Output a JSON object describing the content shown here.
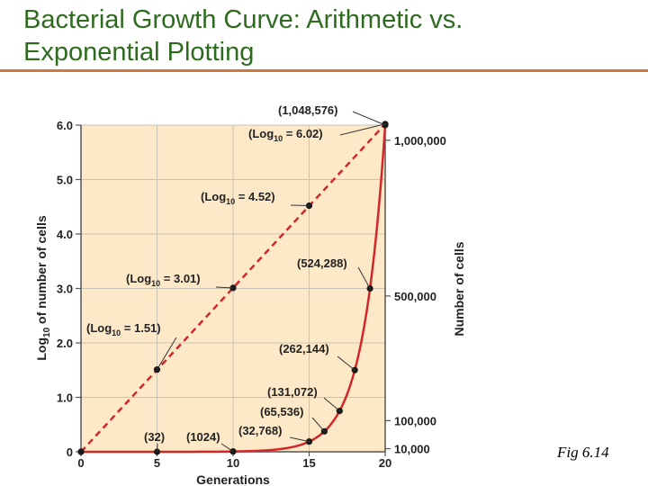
{
  "slide": {
    "title_line1": "Bacterial Growth Curve: Arithmetic vs.",
    "title_line2": "Exponential Plotting",
    "caption": "Fig 6.14"
  },
  "colors": {
    "title": "#2e6b1f",
    "rule": "#cf7a3c",
    "plot_background": "#fde9c8",
    "curve": "#d3262b",
    "point": "#1a1a1a"
  },
  "chart_data": {
    "type": "line",
    "xlabel": "Generations",
    "ylabel_left": {
      "prefix": "Log",
      "sub": "10",
      "suffix": " of number of cells"
    },
    "ylabel_right": "Number of cells",
    "xlim": [
      0,
      20
    ],
    "ylim_left": [
      0,
      6.0
    ],
    "ylim_right": [
      0,
      1048576
    ],
    "grid": true,
    "x_ticks": [
      0,
      5,
      10,
      15,
      20
    ],
    "x_tick_labels": [
      "0",
      "5",
      "10",
      "15",
      "20"
    ],
    "y_left_ticks": [
      0,
      1.0,
      2.0,
      3.0,
      4.0,
      5.0,
      6.0
    ],
    "y_left_tick_labels": [
      "0",
      "1.0",
      "2.0",
      "3.0",
      "4.0",
      "5.0",
      "6.0"
    ],
    "y_right_ticks": [
      10000,
      100000,
      500000,
      1000000
    ],
    "y_right_tick_labels": [
      "10,000",
      "100,000",
      "500,000",
      "1,000,000"
    ],
    "series": [
      {
        "style": "dashed",
        "axis": "left",
        "x": [
          0,
          5,
          10,
          15,
          20
        ],
        "y": [
          0,
          1.51,
          3.01,
          4.52,
          6.02
        ]
      },
      {
        "style": "solid",
        "axis": "right",
        "x": [
          0,
          5,
          10,
          15,
          16,
          17,
          18,
          19,
          20
        ],
        "y": [
          1,
          32,
          1024,
          32768,
          65536,
          131072,
          262144,
          524288,
          1048576
        ]
      }
    ],
    "annotations": [
      {
        "series": 0,
        "point": 1,
        "text_pre": "(Log",
        "text_sub": "10",
        "text_post": " = 1.51)"
      },
      {
        "series": 0,
        "point": 2,
        "text_pre": "(Log",
        "text_sub": "10",
        "text_post": " = 3.01)"
      },
      {
        "series": 0,
        "point": 3,
        "text_pre": "(Log",
        "text_sub": "10",
        "text_post": " = 4.52)"
      },
      {
        "series": 0,
        "point": 4,
        "text_pre": "(Log",
        "text_sub": "10",
        "text_post": " = 6.02)"
      },
      {
        "series": 1,
        "point": 1,
        "text": "(32)"
      },
      {
        "series": 1,
        "point": 2,
        "text": "(1024)"
      },
      {
        "series": 1,
        "point": 3,
        "text": "(32,768)"
      },
      {
        "series": 1,
        "point": 4,
        "text": "(65,536)"
      },
      {
        "series": 1,
        "point": 5,
        "text": "(131,072)"
      },
      {
        "series": 1,
        "point": 6,
        "text": "(262,144)"
      },
      {
        "series": 1,
        "point": 7,
        "text": "(524,288)"
      },
      {
        "series": 1,
        "point": 8,
        "text": "(1,048,576)"
      }
    ]
  }
}
